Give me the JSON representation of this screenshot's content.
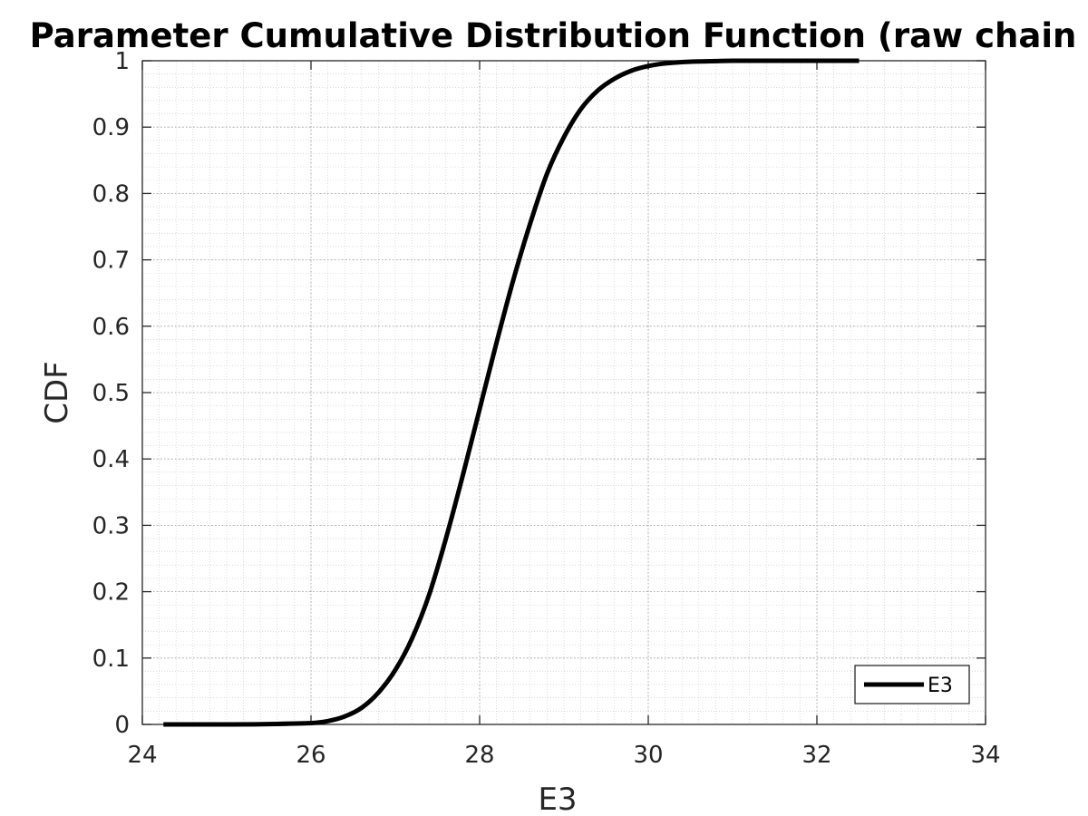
{
  "chart_data": {
    "type": "line",
    "title": "Parameter Cumulative Distribution Function (raw chain",
    "xlabel": "E3",
    "ylabel": "CDF",
    "xlim": [
      24,
      34
    ],
    "ylim": [
      0,
      1
    ],
    "x_ticks": [
      "24",
      "26",
      "28",
      "30",
      "32",
      "34"
    ],
    "y_ticks": [
      "0",
      "0.1",
      "0.2",
      "0.3",
      "0.4",
      "0.5",
      "0.6",
      "0.7",
      "0.8",
      "0.9",
      "1"
    ],
    "grid": "major and minor, dotted",
    "legend": {
      "placement": "bottom-right",
      "entries": [
        "E3"
      ]
    },
    "series": [
      {
        "name": "E3",
        "color": "#000000",
        "x": [
          24.25,
          25.0,
          25.5,
          26.0,
          26.2,
          26.4,
          26.6,
          26.8,
          27.0,
          27.2,
          27.4,
          27.6,
          27.8,
          28.0,
          28.2,
          28.4,
          28.6,
          28.8,
          29.0,
          29.2,
          29.4,
          29.6,
          29.8,
          30.0,
          30.2,
          30.4,
          30.6,
          30.8,
          31.0,
          31.5,
          32.0,
          32.5
        ],
        "y": [
          0.0,
          0.0,
          0.0005,
          0.002,
          0.005,
          0.012,
          0.025,
          0.048,
          0.082,
          0.13,
          0.195,
          0.28,
          0.375,
          0.475,
          0.575,
          0.67,
          0.755,
          0.83,
          0.885,
          0.927,
          0.955,
          0.973,
          0.985,
          0.992,
          0.996,
          0.998,
          0.999,
          0.9995,
          1.0,
          1.0,
          1.0,
          1.0
        ]
      }
    ]
  }
}
